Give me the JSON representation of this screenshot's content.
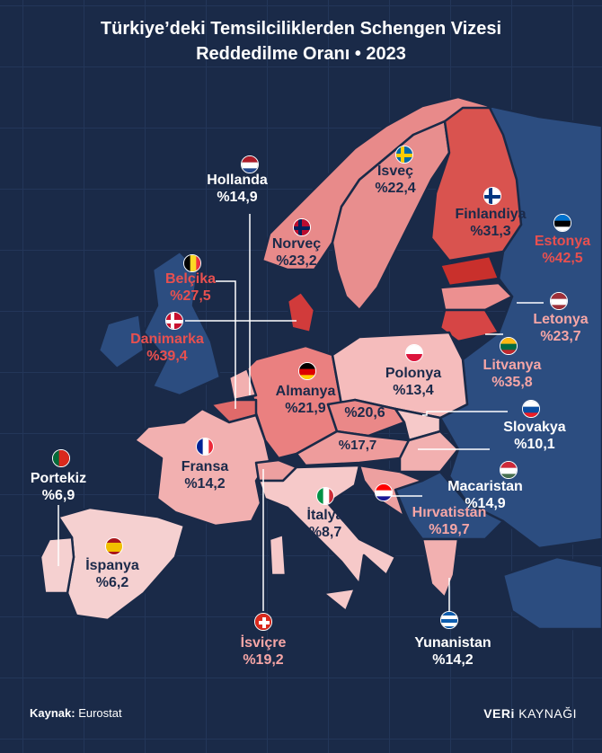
{
  "title_line1": "Türkiye’deki Temsilciliklerden Schengen Vizesi",
  "title_line2": "Reddedilme Oranı • 2023",
  "countries": {
    "hollanda": {
      "name": "Hollanda",
      "value": "%14,9",
      "fill": "#f2b0b0",
      "flag": {
        "dir": "h",
        "colors": [
          "#ae1c28",
          "#ffffff",
          "#21468b"
        ]
      }
    },
    "isvec": {
      "name": "İsveç",
      "value": "%22,4",
      "fill": "#e88e8e",
      "flag": {
        "cross": true,
        "colors": [
          "#006aa7",
          "#fecc00"
        ]
      }
    },
    "finlandiya": {
      "name": "Finlandiya",
      "value": "%31,3",
      "fill": "#d9534f",
      "flag": {
        "cross": true,
        "colors": [
          "#ffffff",
          "#003580"
        ]
      }
    },
    "norvec": {
      "name": "Norveç",
      "value": "%23,2",
      "fill": "#e88a8a",
      "flag": {
        "cross": true,
        "colors": [
          "#ba0c2f",
          "#00205b"
        ]
      }
    },
    "estonya": {
      "name": "Estonya",
      "value": "%42,5",
      "fill": "#c9302c",
      "flag": {
        "dir": "h",
        "colors": [
          "#0072ce",
          "#000000",
          "#ffffff"
        ]
      }
    },
    "belcika": {
      "name": "Belçika",
      "value": "%27,5",
      "fill": "#e06a6a",
      "flag": {
        "dir": "v",
        "colors": [
          "#000000",
          "#fdda24",
          "#ef3340"
        ]
      }
    },
    "danimarka": {
      "name": "Danimarka",
      "value": "%39,4",
      "fill": "#d13b3b",
      "flag": {
        "cross": true,
        "colors": [
          "#c8102e",
          "#ffffff"
        ]
      }
    },
    "letonya": {
      "name": "Letonya",
      "value": "%23,7",
      "fill": "#ec9090",
      "flag": {
        "dir": "h",
        "colors": [
          "#9e3039",
          "#ffffff",
          "#9e3039"
        ]
      }
    },
    "litvanya": {
      "name": "Litvanya",
      "value": "%35,8",
      "fill": "#d64545",
      "flag": {
        "dir": "h",
        "colors": [
          "#fdb913",
          "#006a44",
          "#c1272d"
        ]
      }
    },
    "almanya": {
      "name": "Almanya",
      "value": "%21,9",
      "fill": "#ea8080",
      "flag": {
        "dir": "h",
        "colors": [
          "#000000",
          "#dd0000",
          "#ffce00"
        ]
      }
    },
    "polonya": {
      "name": "Polonya",
      "value": "%13,4",
      "fill": "#f5bcbc",
      "flag": {
        "dir": "h",
        "colors": [
          "#ffffff",
          "#dc143c"
        ]
      }
    },
    "cekya": {
      "value": "%20,6",
      "fill": "#ea8888"
    },
    "avusturya": {
      "value": "%17,7",
      "fill": "#ee9c9c"
    },
    "slovakya": {
      "name": "Slovakya",
      "value": "%10,1",
      "fill": "#f6c9c9",
      "flag": {
        "dir": "h",
        "colors": [
          "#ffffff",
          "#0b4ea2",
          "#ee1c25"
        ]
      }
    },
    "fransa": {
      "name": "Fransa",
      "value": "%14,2",
      "fill": "#f2b0b0",
      "flag": {
        "dir": "v",
        "colors": [
          "#002395",
          "#ffffff",
          "#ed2939"
        ]
      }
    },
    "portekiz": {
      "name": "Portekiz",
      "value": "%6,9",
      "fill": "#f5d0d0",
      "flag": {
        "dir": "v",
        "colors": [
          "#046a38",
          "#da291c",
          "#da291c"
        ]
      }
    },
    "macaristan": {
      "name": "Macaristan",
      "value": "%14,9",
      "fill": "#f2b0b0",
      "flag": {
        "dir": "h",
        "colors": [
          "#ce2939",
          "#ffffff",
          "#477050"
        ]
      }
    },
    "hirvatistan": {
      "name": "Hırvatistan",
      "value": "%19,7",
      "fill": "#eda0a0",
      "flag": {
        "dir": "h",
        "colors": [
          "#ff0000",
          "#ffffff",
          "#171796"
        ]
      }
    },
    "italya": {
      "name": "İtalya",
      "value": "%8,7",
      "fill": "#f6c9c9",
      "flag": {
        "dir": "v",
        "colors": [
          "#009246",
          "#ffffff",
          "#ce2b37"
        ]
      }
    },
    "ispanya": {
      "name": "İspanya",
      "value": "%6,2",
      "fill": "#f5d0d0",
      "flag": {
        "dir": "h",
        "colors": [
          "#aa151b",
          "#f1bf00",
          "#f1bf00",
          "#aa151b"
        ]
      }
    },
    "isvicre": {
      "name": "İsviçre",
      "value": "%19,2",
      "fill": "#eda0a0",
      "flag": {
        "swiss": true,
        "colors": [
          "#da291c",
          "#ffffff"
        ]
      }
    },
    "yunanistan": {
      "name": "Yunanistan",
      "value": "%14,2",
      "fill": "#f2b0b0",
      "flag": {
        "dir": "h",
        "colors": [
          "#0d5eaf",
          "#ffffff",
          "#0d5eaf",
          "#ffffff",
          "#0d5eaf"
        ]
      }
    }
  },
  "non_schengen_fill": "#2c4d80",
  "footer": {
    "source_label": "Kaynak:",
    "source_value": "Eurostat",
    "brand_bold": "VERi",
    "brand_light": "KAYNAĞI"
  }
}
